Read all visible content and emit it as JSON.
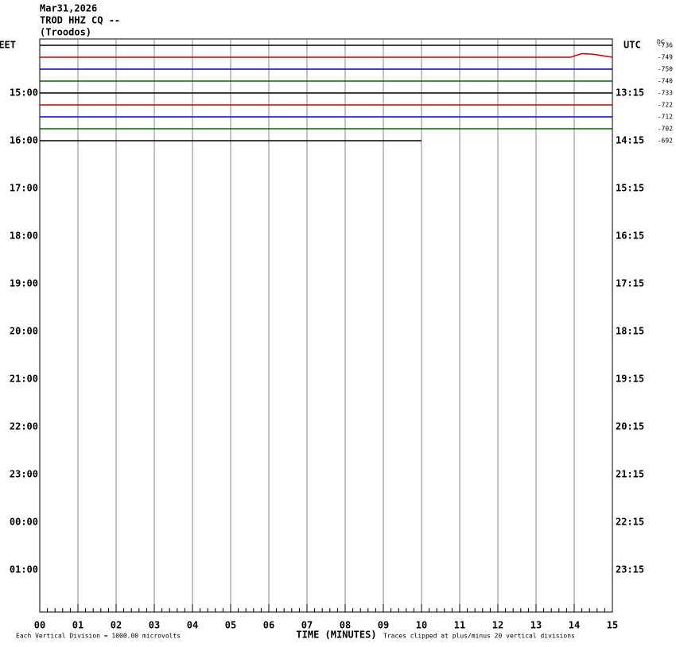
{
  "chart_data": {
    "type": "helicorder",
    "title_lines": [
      "Mar31,2026",
      "TROD HHZ CQ --",
      "(Troodos)"
    ],
    "left_labels": [
      "EET",
      "15:00",
      "16:00",
      "17:00",
      "18:00",
      "19:00",
      "20:00",
      "21:00",
      "22:00",
      "23:00",
      "00:00",
      "01:00"
    ],
    "right_labels": [
      "UTC",
      "13:15",
      "14:15",
      "15:15",
      "16:15",
      "17:15",
      "18:15",
      "19:15",
      "20:15",
      "21:15",
      "22:15",
      "23:15"
    ],
    "dc_header": "DC",
    "xlabel": "TIME (MINUTES)",
    "scale_note": "Each Vertical Division = 1000.00 microvolts",
    "clip_note": "Traces clipped at plus/minus 20 vertical divisions",
    "xlim": [
      0,
      15
    ],
    "xticks": [
      {
        "value": 0,
        "label": "00"
      },
      {
        "value": 1,
        "label": "01"
      },
      {
        "value": 2,
        "label": "02"
      },
      {
        "value": 3,
        "label": "03"
      },
      {
        "value": 4,
        "label": "04"
      },
      {
        "value": 5,
        "label": "05"
      },
      {
        "value": 6,
        "label": "06"
      },
      {
        "value": 7,
        "label": "07"
      },
      {
        "value": 8,
        "label": "08"
      },
      {
        "value": 9,
        "label": "09"
      },
      {
        "value": 10,
        "label": "10"
      },
      {
        "value": 11,
        "label": "11"
      },
      {
        "value": 12,
        "label": "12"
      },
      {
        "value": 13,
        "label": "13"
      },
      {
        "value": 14,
        "label": "14"
      },
      {
        "value": 15,
        "label": "15"
      }
    ],
    "grid": true,
    "series": [
      {
        "color": "#000000",
        "dc": -736,
        "x": [
          0,
          15
        ],
        "values": [
          0,
          0
        ]
      },
      {
        "color": "#cc0000",
        "dc": -749,
        "x": [
          0,
          13.9,
          14.2,
          14.5,
          15
        ],
        "values": [
          0,
          0,
          0.3,
          0.25,
          0
        ]
      },
      {
        "color": "#0000cc",
        "dc": -750,
        "x": [
          0,
          15
        ],
        "values": [
          0,
          0
        ]
      },
      {
        "color": "#006600",
        "dc": -740,
        "x": [
          0,
          15
        ],
        "values": [
          0,
          0
        ]
      },
      {
        "color": "#000000",
        "dc": -733,
        "x": [
          0,
          15
        ],
        "values": [
          0,
          0
        ]
      },
      {
        "color": "#cc0000",
        "dc": -722,
        "x": [
          0,
          15
        ],
        "values": [
          0,
          0
        ]
      },
      {
        "color": "#0000cc",
        "dc": -712,
        "x": [
          0,
          15
        ],
        "values": [
          0,
          0
        ]
      },
      {
        "color": "#006600",
        "dc": -702,
        "x": [
          0,
          15
        ],
        "values": [
          0,
          0
        ]
      },
      {
        "color": "#000000",
        "dc": -692,
        "x": [
          0,
          10
        ],
        "values": [
          0,
          0
        ]
      }
    ]
  }
}
